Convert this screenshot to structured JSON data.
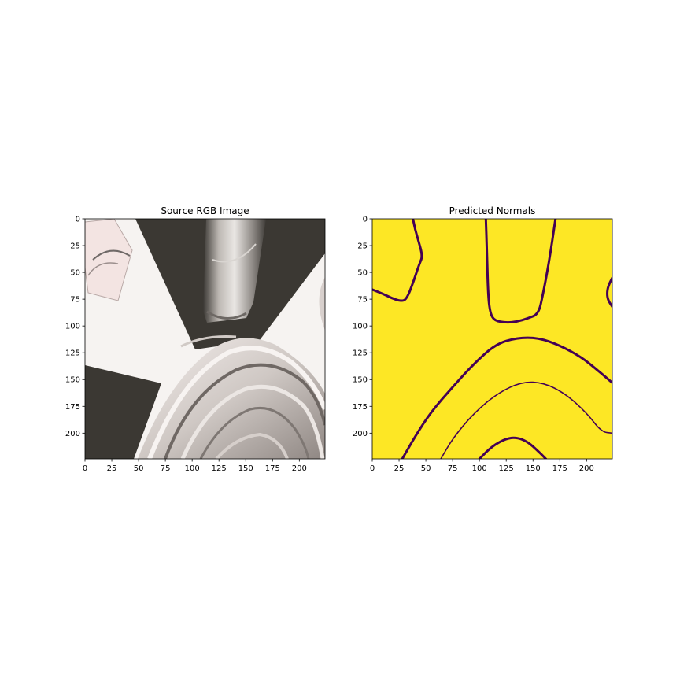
{
  "chart_data": [
    {
      "type": "image",
      "title": "Source RGB Image",
      "content": "photograph",
      "xlim": [
        0,
        224
      ],
      "ylim": [
        224,
        0
      ],
      "xticks": [
        0,
        25,
        50,
        75,
        100,
        125,
        150,
        175,
        200
      ],
      "yticks": [
        0,
        25,
        50,
        75,
        100,
        125,
        150,
        175,
        200
      ]
    },
    {
      "type": "heatmap",
      "title": "Predicted Normals",
      "colormap": "viridis",
      "background_color": "#fde725",
      "contour_color": "#440154",
      "xlim": [
        0,
        224
      ],
      "ylim": [
        224,
        0
      ],
      "xticks": [
        0,
        25,
        50,
        75,
        100,
        125,
        150,
        175,
        200
      ],
      "yticks": [
        0,
        25,
        50,
        75,
        100,
        125,
        150,
        175,
        200
      ],
      "contours": [
        {
          "width": 3,
          "points": [
            [
              0,
              66
            ],
            [
              10,
              70
            ],
            [
              18,
              74
            ],
            [
              27,
              77
            ],
            [
              32,
              75
            ],
            [
              38,
              60
            ],
            [
              44,
              42
            ],
            [
              47,
              35
            ],
            [
              43,
              20
            ],
            [
              40,
              10
            ],
            [
              38,
              0
            ]
          ]
        },
        {
          "width": 3,
          "points": [
            [
              106,
              0
            ],
            [
              107,
              30
            ],
            [
              108,
              70
            ],
            [
              110,
              88
            ],
            [
              114,
              95
            ],
            [
              125,
              97
            ],
            [
              135,
              96
            ],
            [
              145,
              93
            ],
            [
              155,
              89
            ],
            [
              159,
              72
            ],
            [
              165,
              40
            ],
            [
              171,
              0
            ]
          ]
        },
        {
          "width": 3,
          "points": [
            [
              224,
              55
            ],
            [
              220,
              63
            ],
            [
              219,
              70
            ],
            [
              220,
              76
            ],
            [
              224,
              82
            ]
          ]
        },
        {
          "width": 3,
          "points": [
            [
              28,
              224
            ],
            [
              40,
              203
            ],
            [
              55,
              180
            ],
            [
              75,
              157
            ],
            [
              95,
              135
            ],
            [
              115,
              117
            ],
            [
              135,
              111
            ],
            [
              155,
              111
            ],
            [
              175,
              118
            ],
            [
              195,
              129
            ],
            [
              210,
              141
            ],
            [
              224,
              153
            ]
          ]
        },
        {
          "width": 1.6,
          "points": [
            [
              64,
              224
            ],
            [
              75,
              205
            ],
            [
              95,
              181
            ],
            [
              118,
              162
            ],
            [
              140,
              152
            ],
            [
              160,
              153
            ],
            [
              180,
              163
            ],
            [
              200,
              181
            ],
            [
              214,
              199
            ],
            [
              224,
              200
            ]
          ]
        },
        {
          "width": 3,
          "points": [
            [
              100,
              224
            ],
            [
              112,
              212
            ],
            [
              125,
              205
            ],
            [
              135,
              204
            ],
            [
              145,
              208
            ],
            [
              155,
              217
            ],
            [
              162,
              224
            ]
          ]
        }
      ]
    }
  ]
}
